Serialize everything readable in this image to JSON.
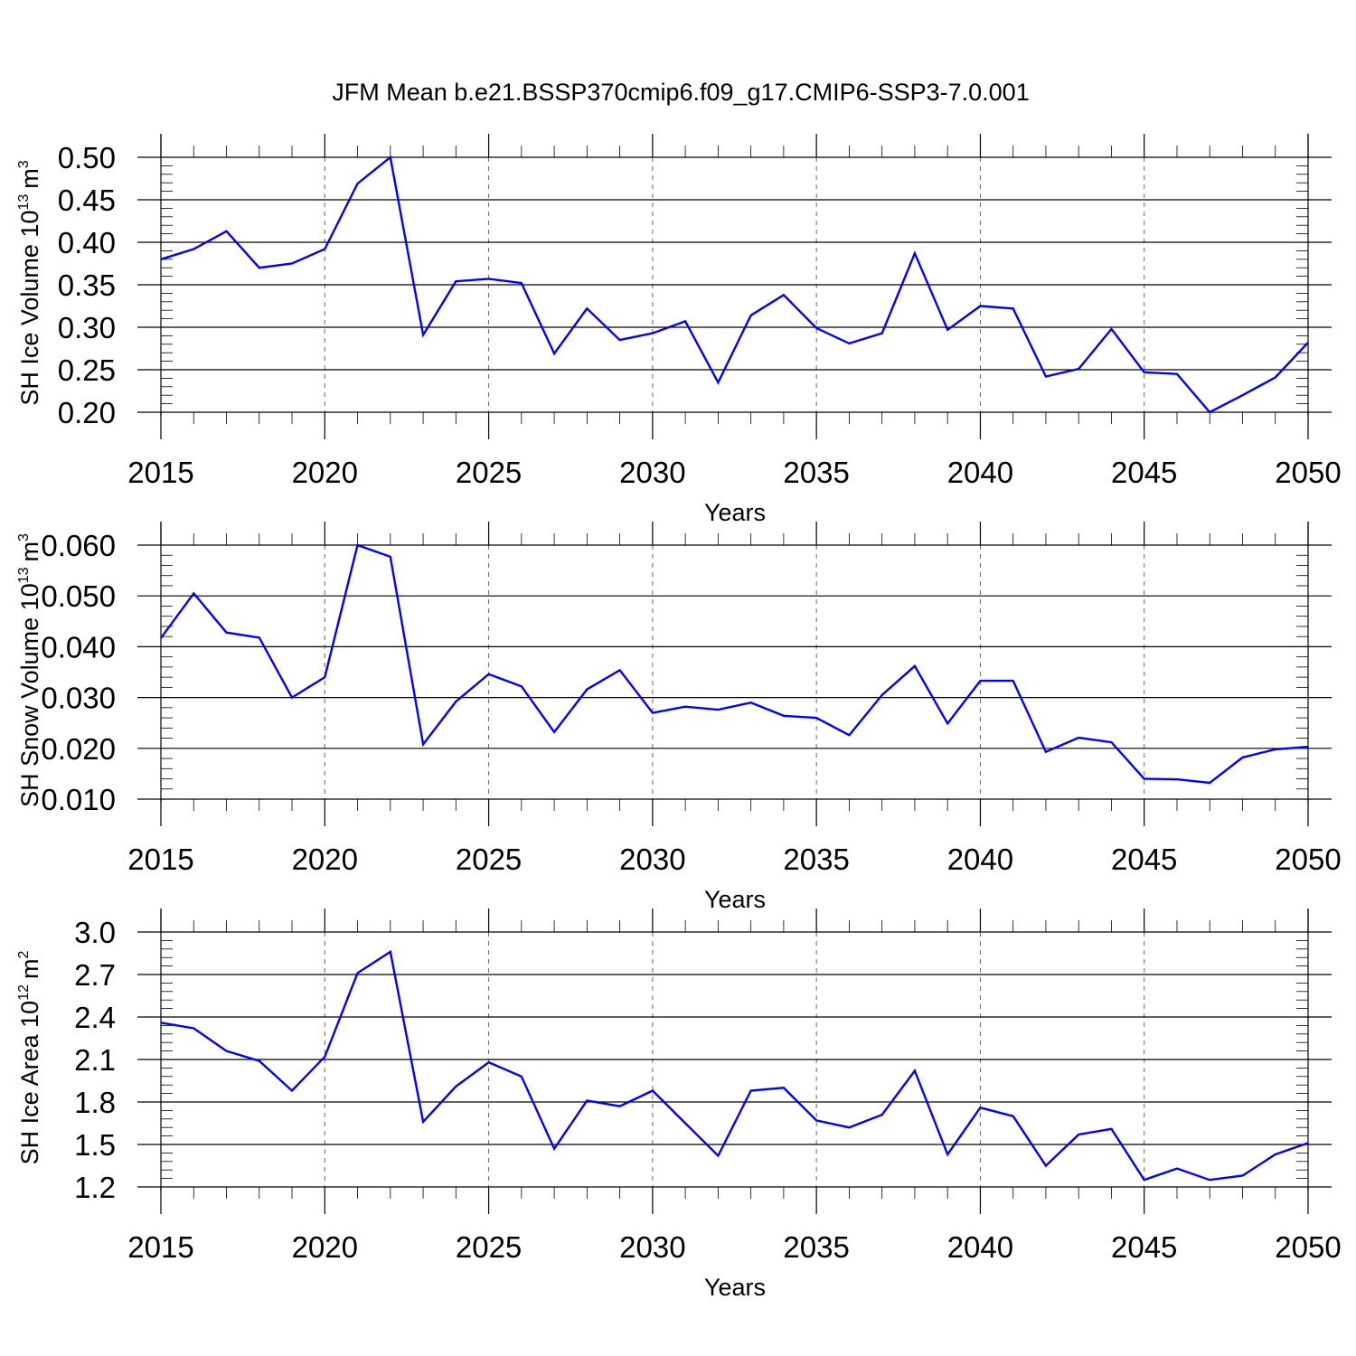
{
  "figure_title": "JFM Mean b.e21.BSSP370cmip6.f09_g17.CMIP6-SSP3-7.0.001",
  "colors": {
    "series": "#0000ff",
    "axes": "#000000",
    "grid": "#666666"
  },
  "chart_data": [
    {
      "type": "line",
      "title": "JFM Mean b.e21.BSSP370cmip6.f09_g17.CMIP6-SSP3-7.0.001",
      "xlabel": "Years",
      "ylabel": "SH Ice Volume 10^13 m^3",
      "ylabel_main": "SH Ice Volume 10",
      "ylabel_exp": "13",
      "ylabel_unit": "m",
      "ylabel_unit_exp": "3",
      "xlim": [
        2015,
        2050
      ],
      "ylim": [
        0.2,
        0.5
      ],
      "xticks": [
        2015,
        2020,
        2025,
        2030,
        2035,
        2040,
        2045,
        2050
      ],
      "yticks": [
        0.2,
        0.25,
        0.3,
        0.35,
        0.4,
        0.45,
        0.5
      ],
      "ytick_labels": [
        "0.20",
        "0.25",
        "0.30",
        "0.35",
        "0.40",
        "0.45",
        "0.50"
      ],
      "grid": "vertical dashed at major x ticks",
      "x": [
        2015,
        2016,
        2017,
        2018,
        2019,
        2020,
        2021,
        2022,
        2023,
        2024,
        2025,
        2026,
        2027,
        2028,
        2029,
        2030,
        2031,
        2032,
        2033,
        2034,
        2035,
        2036,
        2037,
        2038,
        2039,
        2040,
        2041,
        2042,
        2043,
        2044,
        2045,
        2046,
        2047,
        2048,
        2049,
        2050
      ],
      "series": [
        {
          "name": "SH Ice Volume",
          "values": [
            0.38,
            0.392,
            0.413,
            0.37,
            0.375,
            0.392,
            0.469,
            0.5,
            0.291,
            0.354,
            0.357,
            0.352,
            0.269,
            0.322,
            0.285,
            0.293,
            0.307,
            0.235,
            0.314,
            0.338,
            0.299,
            0.281,
            0.293,
            0.387,
            0.297,
            0.325,
            0.322,
            0.242,
            0.251,
            0.298,
            0.247,
            0.245,
            0.2,
            0.22,
            0.241,
            0.282
          ]
        }
      ]
    },
    {
      "type": "line",
      "xlabel": "Years",
      "ylabel": "SH Snow Volume 10^13 m^3",
      "ylabel_main": "SH Snow Volume 10",
      "ylabel_exp": "13",
      "ylabel_unit": "m",
      "ylabel_unit_exp": "3",
      "xlim": [
        2015,
        2050
      ],
      "ylim": [
        0.01,
        0.06
      ],
      "xticks": [
        2015,
        2020,
        2025,
        2030,
        2035,
        2040,
        2045,
        2050
      ],
      "yticks": [
        0.01,
        0.02,
        0.03,
        0.04,
        0.05,
        0.06
      ],
      "ytick_labels": [
        "0.010",
        "0.020",
        "0.030",
        "0.040",
        "0.050",
        "0.060"
      ],
      "grid": "vertical dashed at major x ticks",
      "x": [
        2015,
        2016,
        2017,
        2018,
        2019,
        2020,
        2021,
        2022,
        2023,
        2024,
        2025,
        2026,
        2027,
        2028,
        2029,
        2030,
        2031,
        2032,
        2033,
        2034,
        2035,
        2036,
        2037,
        2038,
        2039,
        2040,
        2041,
        2042,
        2043,
        2044,
        2045,
        2046,
        2047,
        2048,
        2049,
        2050
      ],
      "series": [
        {
          "name": "SH Snow Volume",
          "values": [
            0.0417,
            0.0505,
            0.0428,
            0.0418,
            0.03,
            0.034,
            0.06,
            0.0577,
            0.0208,
            0.0292,
            0.0346,
            0.0322,
            0.0232,
            0.0316,
            0.0354,
            0.027,
            0.0282,
            0.0276,
            0.029,
            0.0264,
            0.026,
            0.0226,
            0.0305,
            0.0362,
            0.0249,
            0.0333,
            0.0333,
            0.0193,
            0.0221,
            0.0212,
            0.014,
            0.0139,
            0.0132,
            0.0182,
            0.0198,
            0.0203
          ]
        }
      ]
    },
    {
      "type": "line",
      "xlabel": "Years",
      "ylabel": "SH Ice Area 10^12 m^2",
      "ylabel_main": "SH Ice Area 10",
      "ylabel_exp": "12",
      "ylabel_unit": "m",
      "ylabel_unit_exp": "2",
      "xlim": [
        2015,
        2050
      ],
      "ylim": [
        1.2,
        3.0
      ],
      "xticks": [
        2015,
        2020,
        2025,
        2030,
        2035,
        2040,
        2045,
        2050
      ],
      "yticks": [
        1.2,
        1.5,
        1.8,
        2.1,
        2.4,
        2.7,
        3.0
      ],
      "ytick_labels": [
        "1.2",
        "1.5",
        "1.8",
        "2.1",
        "2.4",
        "2.7",
        "3.0"
      ],
      "grid": "vertical dashed at major x ticks",
      "x": [
        2015,
        2016,
        2017,
        2018,
        2019,
        2020,
        2021,
        2022,
        2023,
        2024,
        2025,
        2026,
        2027,
        2028,
        2029,
        2030,
        2031,
        2032,
        2033,
        2034,
        2035,
        2036,
        2037,
        2038,
        2039,
        2040,
        2041,
        2042,
        2043,
        2044,
        2045,
        2046,
        2047,
        2048,
        2049,
        2050
      ],
      "series": [
        {
          "name": "SH Ice Area",
          "values": [
            2.36,
            2.32,
            2.16,
            2.09,
            1.88,
            2.12,
            2.71,
            2.86,
            1.66,
            1.91,
            2.08,
            1.98,
            1.47,
            1.81,
            1.77,
            1.88,
            1.65,
            1.42,
            1.88,
            1.9,
            1.67,
            1.62,
            1.71,
            2.02,
            1.43,
            1.76,
            1.7,
            1.35,
            1.57,
            1.61,
            1.25,
            1.33,
            1.25,
            1.28,
            1.43,
            1.51
          ]
        }
      ]
    }
  ]
}
